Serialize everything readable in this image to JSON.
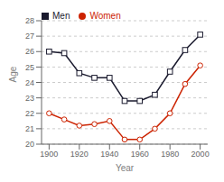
{
  "chart_data": {
    "type": "line",
    "xlabel": "Year",
    "ylabel": "Age",
    "x": [
      1900,
      1910,
      1920,
      1930,
      1940,
      1950,
      1960,
      1970,
      1980,
      1990,
      2000
    ],
    "series": [
      {
        "name": "Men",
        "color": "#1a1a2e",
        "marker": "square",
        "values": [
          26.0,
          25.9,
          24.6,
          24.3,
          24.3,
          22.8,
          22.8,
          23.2,
          24.7,
          26.1,
          27.1
        ]
      },
      {
        "name": "Women",
        "color": "#cc2200",
        "marker": "circle",
        "values": [
          22.0,
          21.6,
          21.2,
          21.3,
          21.5,
          20.3,
          20.3,
          21.0,
          22.0,
          23.9,
          25.1
        ]
      }
    ],
    "xlim": [
      1895,
      2005
    ],
    "ylim": [
      20,
      28
    ],
    "xticks": [
      1900,
      1920,
      1940,
      1960,
      1980,
      2000
    ],
    "yticks": [
      20,
      21,
      22,
      23,
      24,
      25,
      26,
      27,
      28
    ],
    "grid": true,
    "legend": "upper left"
  }
}
